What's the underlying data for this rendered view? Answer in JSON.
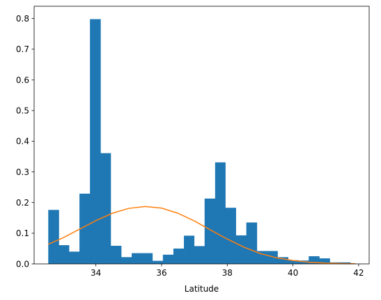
{
  "chart_data": {
    "type": "bar",
    "title": "",
    "xlabel": "Latitude",
    "ylabel": "",
    "xlim": [
      32.12,
      42.32
    ],
    "ylim": [
      0,
      0.84
    ],
    "xticks": [
      34,
      36,
      38,
      40,
      42
    ],
    "xtick_labels": [
      "34",
      "36",
      "38",
      "40",
      "42"
    ],
    "yticks": [
      0.0,
      0.1,
      0.2,
      0.3,
      0.4,
      0.5,
      0.6,
      0.7,
      0.8
    ],
    "ytick_labels": [
      "0.0",
      "0.1",
      "0.2",
      "0.3",
      "0.4",
      "0.5",
      "0.6",
      "0.7",
      "0.8"
    ],
    "grid": false,
    "bins": {
      "edges": [
        32.55,
        32.87,
        33.18,
        33.5,
        33.82,
        34.14,
        34.45,
        34.77,
        35.09,
        35.41,
        35.72,
        36.04,
        36.36,
        36.68,
        36.99,
        37.31,
        37.63,
        37.94,
        38.26,
        38.58,
        38.9,
        39.21,
        39.53,
        39.85,
        40.17,
        40.48,
        40.8,
        41.12,
        41.44,
        41.75
      ],
      "values": [
        0.176,
        0.061,
        0.04,
        0.229,
        0.798,
        0.361,
        0.059,
        0.022,
        0.035,
        0.035,
        0.01,
        0.03,
        0.05,
        0.092,
        0.058,
        0.213,
        0.331,
        0.183,
        0.093,
        0.135,
        0.042,
        0.042,
        0.022,
        0.012,
        0.011,
        0.025,
        0.018,
        0.005,
        0.005
      ]
    },
    "series": [
      {
        "type": "line",
        "x": [
          32.55,
          33.0,
          33.5,
          34.0,
          34.5,
          35.0,
          35.5,
          36.0,
          36.5,
          37.0,
          37.5,
          38.0,
          38.5,
          39.0,
          39.5,
          40.0,
          40.5,
          41.0,
          41.5,
          41.9
        ],
        "values": [
          0.064,
          0.085,
          0.113,
          0.141,
          0.165,
          0.181,
          0.187,
          0.182,
          0.165,
          0.14,
          0.11,
          0.081,
          0.055,
          0.034,
          0.02,
          0.011,
          0.0055,
          0.0025,
          0.0011,
          0.0005
        ]
      }
    ],
    "colors": {
      "bars": "#1f77b4",
      "line": "#ff7f0e"
    }
  }
}
